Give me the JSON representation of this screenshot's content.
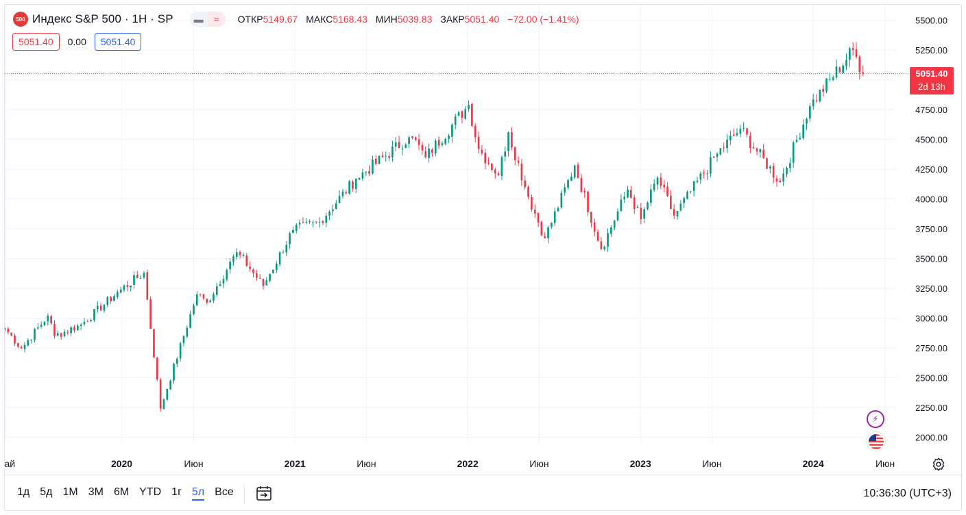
{
  "legend": {
    "logo_text": "500",
    "title": "Индекс S&P 500 · 1Н · SP",
    "open_label": "ОТКР",
    "open": "5149.67",
    "high_label": "МАКС",
    "high": "5168.43",
    "low_label": "МИН",
    "low": "5039.83",
    "close_label": "ЗАКР",
    "close": "5051.40",
    "change": "−72.00 (−1.41%)",
    "sell_price": "5051.40",
    "spread": "0.00",
    "buy_price": "5051.40"
  },
  "last_price": {
    "value": "5051.40",
    "countdown": "2d 13h"
  },
  "icons": {
    "bolt": "lightning-icon",
    "flag": "us-flag-icon",
    "gear": "settings-icon",
    "goto": "go-to-date-icon"
  },
  "colors": {
    "up": "#089981",
    "down": "#f23645",
    "accent": "#2962ff",
    "last_price_line": "#f23645"
  },
  "bottom_bar": {
    "ranges": [
      "1д",
      "5д",
      "1М",
      "3М",
      "6М",
      "YTD",
      "1г",
      "5л",
      "Все"
    ],
    "active_range": "5л",
    "clock": "10:36:30 (UTC+3)"
  },
  "chart_data": {
    "type": "candlestick",
    "title": "",
    "interval": "1 week",
    "y_axis": {
      "side": "right",
      "ylim": [
        1880,
        5560
      ],
      "ticks": [
        2000,
        2250,
        2500,
        2750,
        3000,
        3250,
        3500,
        3750,
        4000,
        4250,
        4500,
        4750,
        5000,
        5250,
        5500
      ],
      "tick_labels": [
        "2000.00",
        "2250.00",
        "2500.00",
        "2750.00",
        "3000.00",
        "3250.00",
        "3500.00",
        "3750.00",
        "4000.00",
        "4250.00",
        "4500.00",
        "4750.00",
        "5000.00",
        "5250.00",
        "5500.00"
      ]
    },
    "x_axis": {
      "range": [
        "2019-04-29",
        "2024-06-24"
      ],
      "ticks": [
        {
          "date": "2019-05-01",
          "label": "Май",
          "bold": false
        },
        {
          "date": "2020-01-01",
          "label": "2020",
          "bold": true
        },
        {
          "date": "2020-06-01",
          "label": "Июн",
          "bold": false
        },
        {
          "date": "2021-01-01",
          "label": "2021",
          "bold": true
        },
        {
          "date": "2021-06-01",
          "label": "Июн",
          "bold": false
        },
        {
          "date": "2022-01-01",
          "label": "2022",
          "bold": true
        },
        {
          "date": "2022-06-01",
          "label": "Июн",
          "bold": false
        },
        {
          "date": "2023-01-01",
          "label": "2023",
          "bold": true
        },
        {
          "date": "2023-06-01",
          "label": "Июн",
          "bold": false
        },
        {
          "date": "2024-01-01",
          "label": "2024",
          "bold": true
        },
        {
          "date": "2024-06-01",
          "label": "Июн",
          "bold": false
        }
      ]
    },
    "grid": true,
    "last_price": 5051.4,
    "anchors": [
      [
        "2019-04-29",
        2915
      ],
      [
        "2019-06-03",
        2745
      ],
      [
        "2019-07-29",
        3020
      ],
      [
        "2019-08-12",
        2850
      ],
      [
        "2019-10-07",
        2945
      ],
      [
        "2019-12-30",
        3240
      ],
      [
        "2020-02-17",
        3380
      ],
      [
        "2020-03-23",
        2240
      ],
      [
        "2020-06-08",
        3200
      ],
      [
        "2020-06-29",
        3130
      ],
      [
        "2020-09-01",
        3560
      ],
      [
        "2020-10-26",
        3270
      ],
      [
        "2020-12-28",
        3740
      ],
      [
        "2021-02-22",
        3810
      ],
      [
        "2021-05-10",
        4170
      ],
      [
        "2021-09-03",
        4530
      ],
      [
        "2021-10-04",
        4350
      ],
      [
        "2022-01-03",
        4790
      ],
      [
        "2022-01-24",
        4420
      ],
      [
        "2022-03-07",
        4200
      ],
      [
        "2022-03-28",
        4560
      ],
      [
        "2022-05-09",
        4020
      ],
      [
        "2022-06-13",
        3670
      ],
      [
        "2022-08-15",
        4280
      ],
      [
        "2022-10-10",
        3580
      ],
      [
        "2022-12-05",
        4080
      ],
      [
        "2023-01-02",
        3830
      ],
      [
        "2023-02-06",
        4180
      ],
      [
        "2023-03-13",
        3860
      ],
      [
        "2023-06-12",
        4380
      ],
      [
        "2023-07-31",
        4590
      ],
      [
        "2023-10-23",
        4140
      ],
      [
        "2023-12-25",
        4780
      ],
      [
        "2024-03-25",
        5250
      ],
      [
        "2024-04-15",
        5051
      ]
    ]
  }
}
